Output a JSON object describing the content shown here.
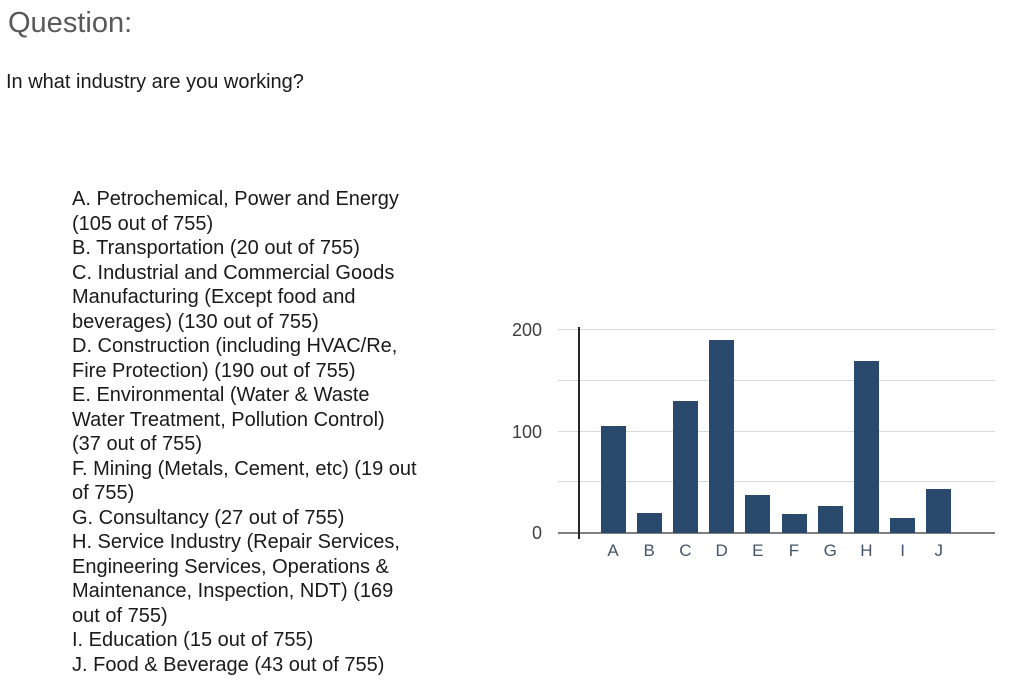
{
  "header": {
    "title": "Question:"
  },
  "question": {
    "text": "In what industry are you working?"
  },
  "options": {
    "items": [
      {
        "text": "A. Petrochemical, Power and Energy\n(105 out of 755)"
      },
      {
        "text": "B. Transportation (20 out of 755)"
      },
      {
        "text": "C. Industrial and Commercial Goods\nManufacturing (Except food and\nbeverages) (130 out of 755)"
      },
      {
        "text": "D. Construction (including HVAC/Re,\nFire Protection) (190 out of 755)"
      },
      {
        "text": "E. Environmental (Water & Waste\nWater Treatment, Pollution Control)\n(37 out of 755)"
      },
      {
        "text": "F. Mining (Metals, Cement, etc) (19 out\nof 755)"
      },
      {
        "text": "G. Consultancy (27 out of 755)"
      },
      {
        "text": "H. Service Industry (Repair Services,\nEngineering Services, Operations &\nMaintenance, Inspection, NDT) (169\nout of 755)"
      },
      {
        "text": "I. Education (15 out of 755)"
      },
      {
        "text": "J. Food & Beverage (43 out of 755)"
      }
    ]
  },
  "chart_data": {
    "type": "bar",
    "categories": [
      "A",
      "B",
      "C",
      "D",
      "E",
      "F",
      "G",
      "H",
      "I",
      "J"
    ],
    "values": [
      105,
      20,
      130,
      190,
      37,
      19,
      27,
      169,
      15,
      43
    ],
    "total_responses": 755,
    "title": "",
    "xlabel": "",
    "ylabel": "",
    "ylim": [
      0,
      200
    ],
    "yticks": [
      0,
      100,
      200
    ],
    "gridline_values": [
      0,
      50,
      100,
      150,
      200
    ],
    "grid_on": true,
    "legend": false,
    "colors": {
      "bar": "#2a4a6d",
      "gridline": "#d9d9d9",
      "baseline": "#7f7f7f",
      "axis_line": "#262626",
      "y_tick_label": "#3f3f3f",
      "x_tick_label": "#44546a"
    }
  }
}
